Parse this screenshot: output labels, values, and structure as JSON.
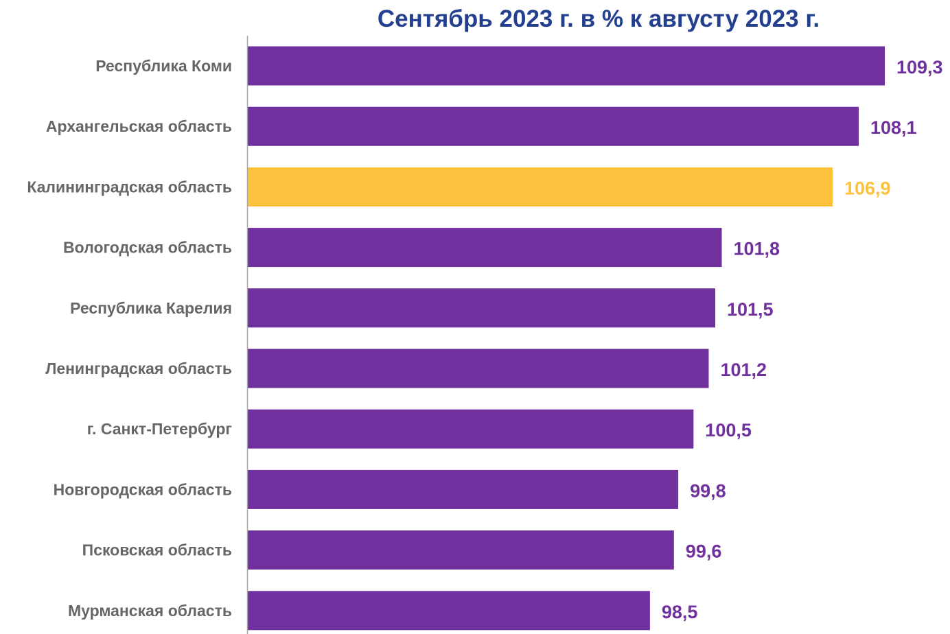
{
  "chart_data": {
    "type": "bar",
    "orientation": "horizontal",
    "title": "Сентябрь 2023 г. в % к августу 2023 г.",
    "categories": [
      "Республика Коми",
      "Архангельская область",
      "Калининградская область",
      "Вологодская область",
      "Республика Карелия",
      "Ленинградская область",
      "г. Санкт-Петербург",
      "Новгородская область",
      "Псковская область",
      "Мурманская область"
    ],
    "values": [
      109.3,
      108.1,
      106.9,
      101.8,
      101.5,
      101.2,
      100.5,
      99.8,
      99.6,
      98.5
    ],
    "value_labels": [
      "109,3",
      "108,1",
      "106,9",
      "101,8",
      "101,5",
      "101,2",
      "100,5",
      "99,8",
      "99,6",
      "98,5"
    ],
    "highlight_index": 2,
    "xlim": [
      80,
      109.3
    ],
    "grid": false,
    "legend": "none",
    "colors": {
      "bar": "#70309e",
      "highlight": "#fcc23d",
      "title": "#233f8f",
      "category_text": "#666666",
      "axis": "#a6a6a6"
    }
  }
}
